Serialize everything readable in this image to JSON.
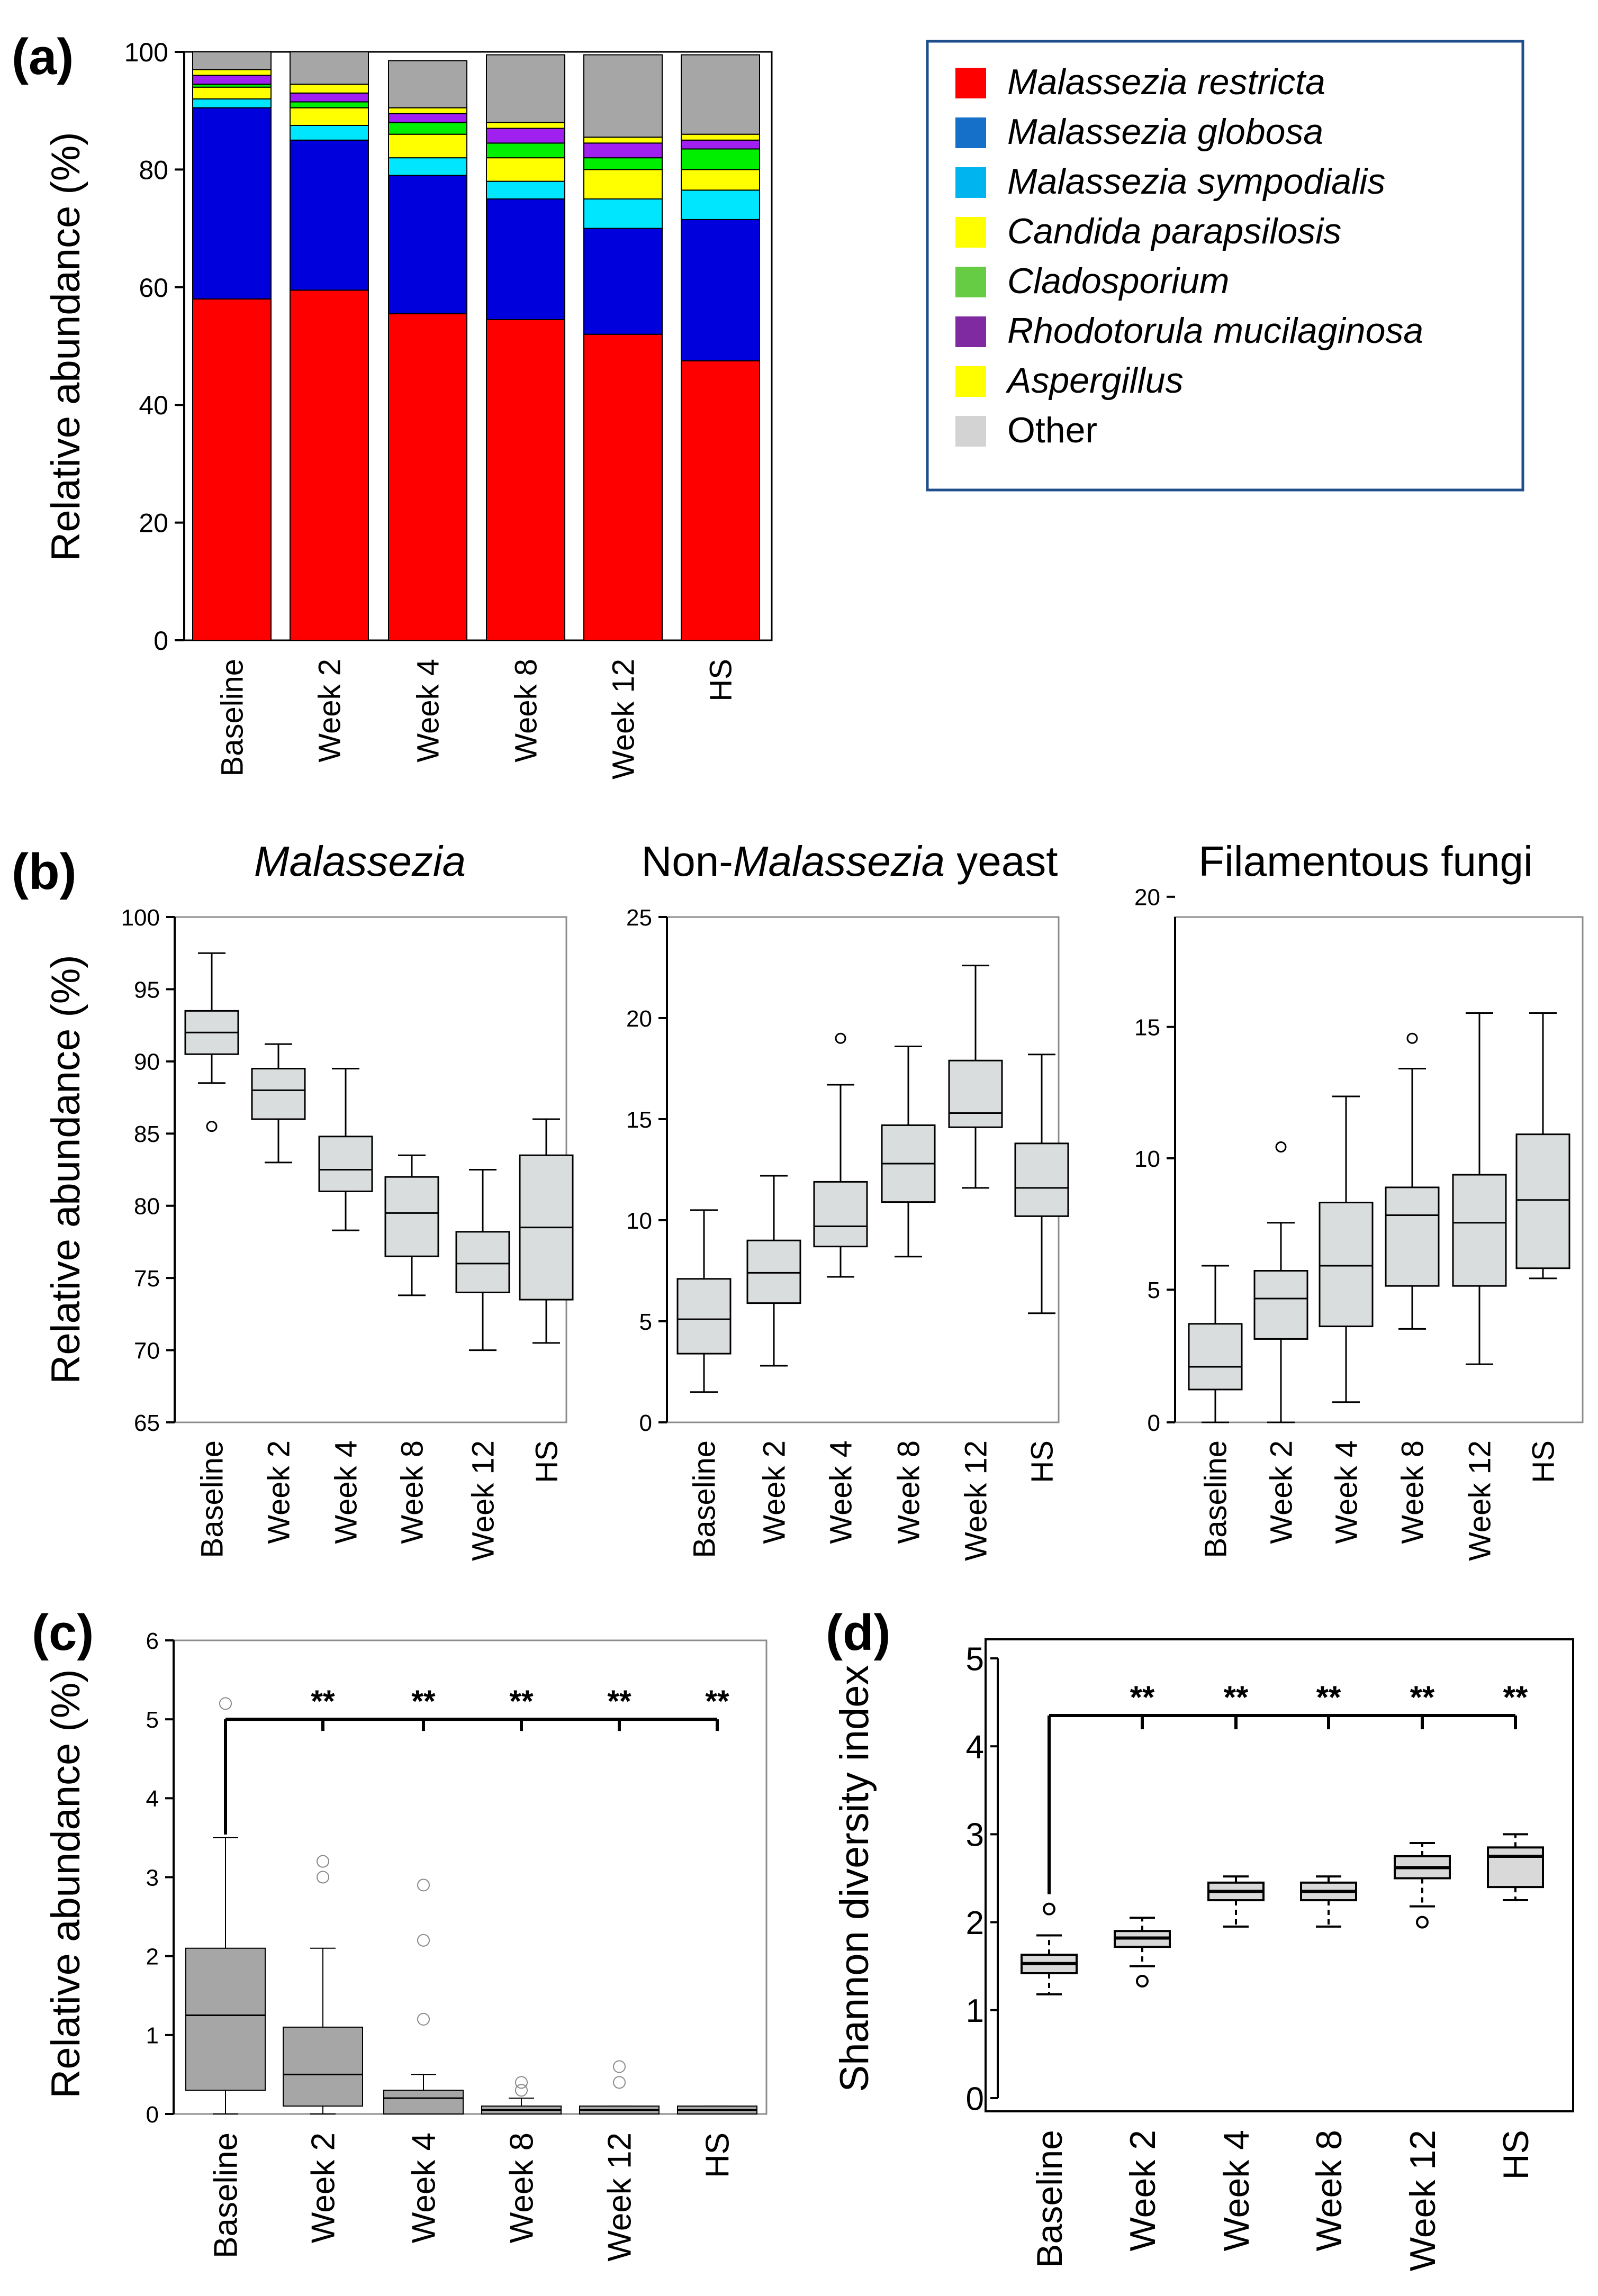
{
  "categories": [
    "Baseline",
    "Week 2",
    "Week 4",
    "Week 8",
    "Week 12",
    "HS"
  ],
  "panel_labels": {
    "a": "(a)",
    "b": "(b)",
    "c": "(c)",
    "d": "(d)"
  },
  "significance_marker": "**",
  "chart_data": [
    {
      "id": "a",
      "type": "bar",
      "stacked": true,
      "ylabel": "Relative abundance (%)",
      "ylim": [
        0,
        100
      ],
      "yticks": [
        0,
        20,
        40,
        60,
        80,
        100
      ],
      "categories": [
        "Baseline",
        "Week 2",
        "Week 4",
        "Week 8",
        "Week 12",
        "HS"
      ],
      "legend_position": "top-right",
      "series": [
        {
          "name": "Malassezia restricta",
          "color": "#ff0000",
          "legend_color": "#ff0000",
          "values": [
            58,
            59.5,
            55.5,
            54.5,
            52,
            47.5
          ]
        },
        {
          "name": "Malassezia globosa",
          "color": "#0000dd",
          "legend_color": "#1470c8",
          "values": [
            32.5,
            25.5,
            23.5,
            20.5,
            18,
            24
          ]
        },
        {
          "name": "Malassezia sympodialis",
          "color": "#00e6ff",
          "legend_color": "#00b4f0",
          "values": [
            1.5,
            2.5,
            3,
            3,
            5,
            5
          ]
        },
        {
          "name": "Candida parapsilosis",
          "color": "#ffff00",
          "legend_color": "#ffff00",
          "values": [
            2,
            3,
            4,
            4,
            5,
            3.5
          ]
        },
        {
          "name": "Cladosporium",
          "color": "#00ee00",
          "legend_color": "#66cc44",
          "values": [
            0.5,
            1,
            2,
            2.5,
            2,
            3.5
          ]
        },
        {
          "name": "Rhodotorula mucilaginosa",
          "color": "#a020f0",
          "legend_color": "#7f2aa0",
          "values": [
            1.5,
            1.5,
            1.5,
            2.5,
            2.5,
            1.5
          ]
        },
        {
          "name": "Aspergillus",
          "color": "#ffff00",
          "legend_color": "#ffff00",
          "values": [
            1,
            1.5,
            1,
            1,
            1,
            1
          ]
        },
        {
          "name": "Other",
          "color": "#a6a6a6",
          "legend_color": "#d3d3d3",
          "values": [
            3,
            5.5,
            8,
            11.5,
            14,
            13.5
          ]
        }
      ]
    },
    {
      "id": "b1",
      "type": "box",
      "title": "Malassezia",
      "ylabel": "Relative abundance (%)",
      "ylim": [
        65,
        100
      ],
      "yticks": [
        65,
        70,
        75,
        80,
        85,
        90,
        95,
        100
      ],
      "categories": [
        "Baseline",
        "Week 2",
        "Week 4",
        "Week 8",
        "Week 12",
        "HS"
      ],
      "boxes": [
        {
          "min": 88.5,
          "q1": 90.5,
          "median": 92,
          "q3": 93.5,
          "max": 97.5,
          "outliers": [
            85.5
          ]
        },
        {
          "min": 83,
          "q1": 86,
          "median": 88,
          "q3": 89.5,
          "max": 91.2,
          "outliers": []
        },
        {
          "min": 78.3,
          "q1": 81,
          "median": 82.5,
          "q3": 84.8,
          "max": 89.5,
          "outliers": []
        },
        {
          "min": 73.8,
          "q1": 76.5,
          "median": 79.5,
          "q3": 82,
          "max": 83.5,
          "outliers": []
        },
        {
          "min": 70,
          "q1": 74,
          "median": 76,
          "q3": 78.2,
          "max": 82.5,
          "outliers": []
        },
        {
          "min": 70.5,
          "q1": 73.5,
          "median": 78.5,
          "q3": 83.5,
          "max": 86,
          "outliers": []
        }
      ]
    },
    {
      "id": "b2",
      "type": "box",
      "title_parts": [
        "Non-",
        "Malassezia",
        " yeast"
      ],
      "ylim": [
        0,
        25
      ],
      "yticks": [
        0,
        5,
        10,
        15,
        20,
        25
      ],
      "categories": [
        "Baseline",
        "Week 2",
        "Week 4",
        "Week 8",
        "Week 12",
        "HS"
      ],
      "boxes": [
        {
          "min": 1.5,
          "q1": 3.4,
          "median": 5.1,
          "q3": 7.1,
          "max": 10.5,
          "outliers": []
        },
        {
          "min": 2.8,
          "q1": 5.9,
          "median": 7.4,
          "q3": 9,
          "max": 12.2,
          "outliers": []
        },
        {
          "min": 7.2,
          "q1": 8.7,
          "median": 9.7,
          "q3": 11.9,
          "max": 16.7,
          "outliers": [
            19
          ]
        },
        {
          "min": 8.2,
          "q1": 10.9,
          "median": 12.8,
          "q3": 14.7,
          "max": 18.6,
          "outliers": []
        },
        {
          "min": 11.6,
          "q1": 14.6,
          "median": 15.3,
          "q3": 17.9,
          "max": 22.6,
          "outliers": []
        },
        {
          "min": 5.4,
          "q1": 10.2,
          "median": 11.6,
          "q3": 13.8,
          "max": 18.2,
          "outliers": []
        }
      ]
    },
    {
      "id": "b3",
      "type": "box",
      "title": "Filamentous fungi",
      "ylim": [
        0,
        20
      ],
      "yticks": [
        0,
        5,
        10,
        15,
        20
      ],
      "ytick_positions": [
        0,
        5.25,
        10.45,
        15.65,
        20.8
      ],
      "categories": [
        "Baseline",
        "Week 2",
        "Week 4",
        "Week 8",
        "Week 12",
        "HS"
      ],
      "boxes": [
        {
          "min": 0,
          "q1": 1.3,
          "median": 2.2,
          "q3": 3.9,
          "max": 6.2,
          "outliers": []
        },
        {
          "min": 0,
          "q1": 3.3,
          "median": 4.9,
          "q3": 6,
          "max": 7.9,
          "outliers": [
            10.9
          ]
        },
        {
          "min": 0.8,
          "q1": 3.8,
          "median": 6.2,
          "q3": 8.7,
          "max": 12.9,
          "outliers": []
        },
        {
          "min": 3.7,
          "q1": 5.4,
          "median": 8.2,
          "q3": 9.3,
          "max": 14,
          "outliers": [
            15.2
          ]
        },
        {
          "min": 2.3,
          "q1": 5.4,
          "median": 7.9,
          "q3": 9.8,
          "max": 16.2,
          "outliers": []
        },
        {
          "min": 5.7,
          "q1": 6.1,
          "median": 8.8,
          "q3": 11.4,
          "max": 16.2,
          "outliers": []
        }
      ]
    },
    {
      "id": "c",
      "type": "box",
      "ylabel": "Relative abundance (%)",
      "ylim": [
        0,
        6
      ],
      "yticks": [
        0,
        1,
        2,
        3,
        4,
        5,
        6
      ],
      "categories": [
        "Baseline",
        "Week 2",
        "Week 4",
        "Week 8",
        "Week 12",
        "HS"
      ],
      "boxes": [
        {
          "min": 0,
          "q1": 0.3,
          "median": 1.25,
          "q3": 2.1,
          "max": 3.5,
          "outliers": [
            5.2
          ]
        },
        {
          "min": 0,
          "q1": 0.1,
          "median": 0.5,
          "q3": 1.1,
          "max": 2.1,
          "outliers": [
            3.0,
            3.2
          ]
        },
        {
          "min": 0,
          "q1": 0,
          "median": 0.2,
          "q3": 0.3,
          "max": 0.5,
          "outliers": [
            1.2,
            2.2,
            2.9
          ]
        },
        {
          "min": 0,
          "q1": 0,
          "median": 0.05,
          "q3": 0.1,
          "max": 0.2,
          "outliers": [
            0.3,
            0.4
          ]
        },
        {
          "min": 0,
          "q1": 0,
          "median": 0.05,
          "q3": 0.1,
          "max": 0.1,
          "outliers": [
            0.4,
            0.6
          ]
        },
        {
          "min": 0,
          "q1": 0,
          "median": 0.05,
          "q3": 0.1,
          "max": 0.1,
          "outliers": []
        }
      ],
      "significance": {
        "bracket_y": 5.0,
        "marker": "**"
      }
    },
    {
      "id": "d",
      "type": "box",
      "ylabel": "Shannon diversity index",
      "ylim": [
        0,
        5
      ],
      "yticks": [
        0,
        1,
        2,
        3,
        4,
        5
      ],
      "categories": [
        "Baseline",
        "Week 2",
        "Week 4",
        "Week 8",
        "Week 12",
        "HS"
      ],
      "boxes": [
        {
          "min": 1.18,
          "q1": 1.42,
          "median": 1.53,
          "q3": 1.63,
          "max": 1.85,
          "outliers": [
            2.15
          ]
        },
        {
          "min": 1.5,
          "q1": 1.72,
          "median": 1.82,
          "q3": 1.9,
          "max": 2.05,
          "outliers": [
            1.33
          ]
        },
        {
          "min": 1.95,
          "q1": 2.25,
          "median": 2.35,
          "q3": 2.45,
          "max": 2.52,
          "outliers": []
        },
        {
          "min": 1.95,
          "q1": 2.25,
          "median": 2.35,
          "q3": 2.45,
          "max": 2.52,
          "outliers": []
        },
        {
          "min": 2.18,
          "q1": 2.5,
          "median": 2.62,
          "q3": 2.75,
          "max": 2.9,
          "outliers": [
            2.0
          ]
        },
        {
          "min": 2.25,
          "q1": 2.4,
          "median": 2.75,
          "q3": 2.85,
          "max": 3.0,
          "outliers": []
        }
      ],
      "significance": {
        "bracket_y": 4.35,
        "marker": "**"
      }
    }
  ]
}
